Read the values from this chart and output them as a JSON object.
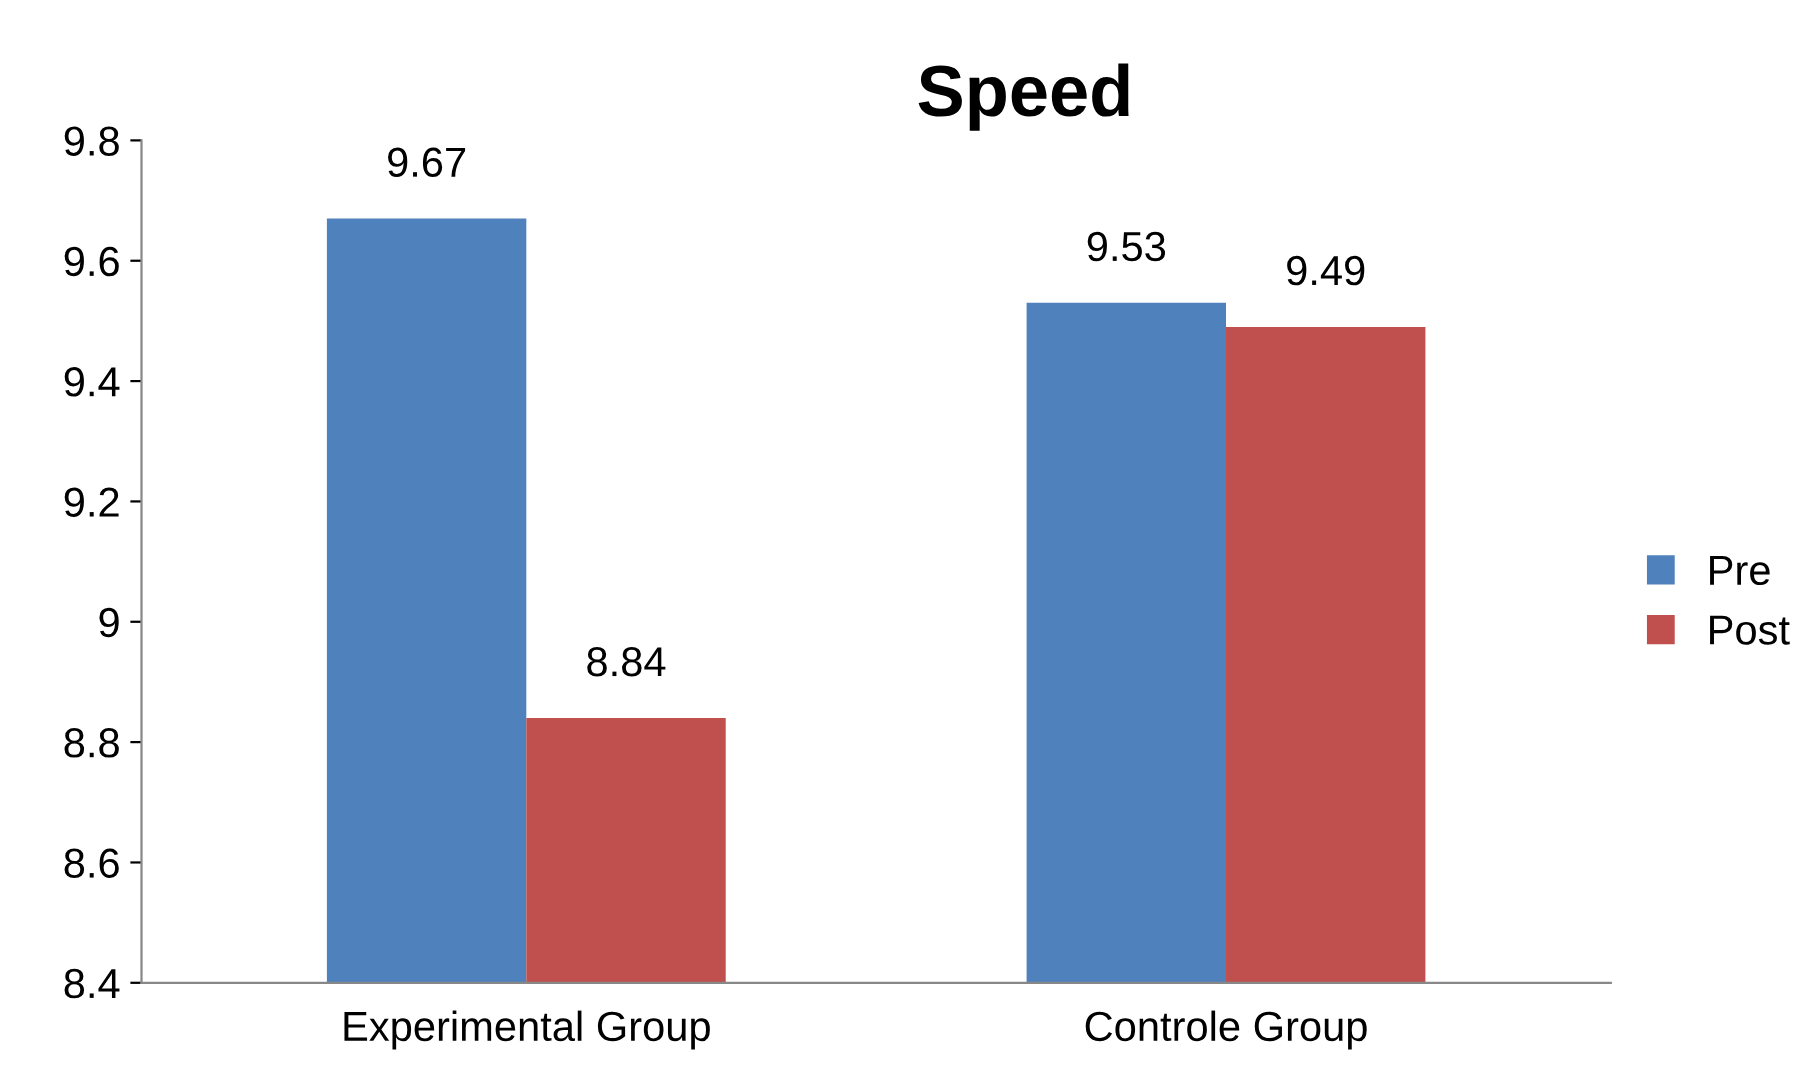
{
  "chart_data": {
    "type": "bar",
    "title": "Speed",
    "categories": [
      "Experimental Group",
      "Controle Group"
    ],
    "series": [
      {
        "name": "Pre",
        "color": "#4f81bd",
        "values": [
          9.67,
          9.53
        ]
      },
      {
        "name": "Post",
        "color": "#c0504d",
        "values": [
          8.84,
          9.49
        ]
      }
    ],
    "ylim": [
      8.4,
      9.8
    ],
    "yticks": [
      8.4,
      8.6,
      8.8,
      9,
      9.2,
      9.4,
      9.6,
      9.8
    ],
    "grid": false,
    "legend": "right",
    "data_labels": true
  }
}
